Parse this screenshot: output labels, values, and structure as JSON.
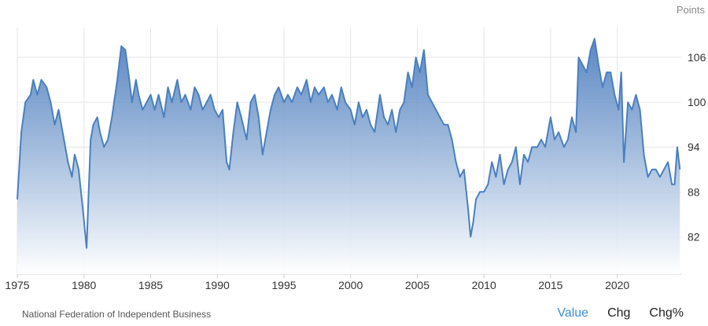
{
  "source_label": "National Federation of Independent Business",
  "tabs": [
    {
      "label": "Value",
      "active": true
    },
    {
      "label": "Chg",
      "active": false
    },
    {
      "label": "Chg%",
      "active": false
    }
  ],
  "colors": {
    "line": "#4a7fc0",
    "fill_top": "#3f74b9",
    "fill_bottom": "#ffffff",
    "active_tab": "#3f8fd2"
  },
  "chart_data": {
    "type": "area",
    "ylabel": "Points",
    "yaxis_position": "right",
    "x_ticks": [
      1975,
      1980,
      1985,
      1990,
      1995,
      2000,
      2005,
      2010,
      2015,
      2020
    ],
    "y_ticks": [
      82,
      88,
      94,
      100,
      106
    ],
    "xlim": [
      1975,
      2024.8
    ],
    "ylim": [
      77,
      110
    ],
    "grid": true,
    "series": [
      {
        "x": [
          1975.0,
          1975.3,
          1975.6,
          1976.0,
          1976.2,
          1976.5,
          1976.8,
          1977.2,
          1977.5,
          1977.8,
          1978.1,
          1978.5,
          1978.8,
          1979.1,
          1979.3,
          1979.6,
          1979.9,
          1980.2,
          1980.35,
          1980.5,
          1980.7,
          1981.0,
          1981.2,
          1981.5,
          1981.8,
          1982.1,
          1982.5,
          1982.8,
          1983.1,
          1983.4,
          1983.6,
          1983.9,
          1984.1,
          1984.4,
          1984.7,
          1985.0,
          1985.3,
          1985.6,
          1986.0,
          1986.3,
          1986.6,
          1987.0,
          1987.3,
          1987.6,
          1988.0,
          1988.3,
          1988.6,
          1988.9,
          1989.2,
          1989.5,
          1989.8,
          1990.1,
          1990.4,
          1990.7,
          1990.9,
          1991.2,
          1991.5,
          1991.8,
          1992.2,
          1992.5,
          1992.8,
          1993.1,
          1993.4,
          1993.7,
          1994.0,
          1994.3,
          1994.6,
          1995.0,
          1995.3,
          1995.6,
          1996.0,
          1996.3,
          1996.7,
          1997.0,
          1997.3,
          1997.6,
          1998.0,
          1998.3,
          1998.6,
          1999.0,
          1999.3,
          1999.6,
          2000.0,
          2000.3,
          2000.6,
          2000.9,
          2001.2,
          2001.5,
          2001.8,
          2002.2,
          2002.5,
          2002.8,
          2003.1,
          2003.4,
          2003.7,
          2004.0,
          2004.3,
          2004.6,
          2004.9,
          2005.2,
          2005.5,
          2005.8,
          2006.1,
          2006.4,
          2006.7,
          2007.0,
          2007.3,
          2007.6,
          2007.9,
          2008.2,
          2008.5,
          2008.8,
          2009.0,
          2009.2,
          2009.4,
          2009.7,
          2010.0,
          2010.3,
          2010.6,
          2010.9,
          2011.2,
          2011.5,
          2011.8,
          2012.1,
          2012.4,
          2012.7,
          2013.0,
          2013.3,
          2013.6,
          2014.0,
          2014.3,
          2014.6,
          2015.0,
          2015.3,
          2015.6,
          2016.0,
          2016.3,
          2016.6,
          2016.9,
          2017.1,
          2017.4,
          2017.7,
          2018.0,
          2018.3,
          2018.6,
          2018.9,
          2019.2,
          2019.5,
          2019.8,
          2020.1,
          2020.3,
          2020.5,
          2020.8,
          2021.1,
          2021.4,
          2021.7,
          2022.0,
          2022.3,
          2022.6,
          2022.9,
          2023.2,
          2023.5,
          2023.8,
          2024.1,
          2024.3,
          2024.5,
          2024.7
        ],
        "values": [
          87,
          96,
          100,
          101,
          103,
          101,
          103,
          102,
          100,
          97,
          99,
          95,
          92,
          90,
          93,
          91,
          86,
          80.5,
          88,
          95,
          97,
          98,
          96,
          94,
          95,
          98,
          103,
          107.5,
          107,
          103,
          100,
          103,
          101,
          99,
          100,
          101,
          99,
          101,
          98,
          102,
          100,
          103,
          100,
          101,
          99,
          102,
          101,
          99,
          100,
          101,
          99,
          98,
          99,
          92,
          91,
          96,
          100,
          98,
          95,
          100,
          101,
          98,
          93,
          96,
          99,
          101,
          102,
          100,
          101,
          100,
          102,
          101,
          103,
          100,
          102,
          101,
          102,
          100,
          101,
          99,
          102,
          100,
          99,
          97,
          100,
          98,
          99,
          97,
          96,
          101,
          98,
          97,
          99,
          96,
          99,
          100,
          104,
          102,
          106,
          104,
          107,
          101,
          100,
          99,
          98,
          97,
          97,
          95,
          92,
          90,
          91,
          86,
          82,
          84,
          87,
          88,
          88,
          89,
          92,
          90,
          93,
          89,
          91,
          92,
          94,
          89,
          93,
          92,
          94,
          94,
          95,
          94,
          98,
          95,
          96,
          94,
          95,
          98,
          96,
          106,
          105,
          104,
          107,
          108.5,
          105,
          102,
          104,
          104,
          101,
          99,
          104,
          92,
          100,
          99,
          101,
          99,
          93,
          90,
          91,
          91,
          90,
          91,
          92,
          89,
          89,
          94,
          91
        ]
      }
    ]
  }
}
